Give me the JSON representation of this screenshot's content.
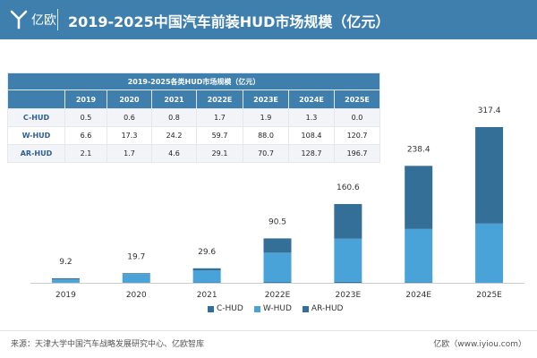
{
  "header": {
    "logo_text": "亿欧",
    "title": "2019-2025中国汽车前装HUD市场规模（亿元）"
  },
  "table": {
    "caption": "2019-2025各类HUD市场规模（亿元）",
    "columns": [
      "",
      "2019",
      "2020",
      "2021",
      "2022E",
      "2023E",
      "2024E",
      "2025E"
    ],
    "rows": [
      {
        "label": "C-HUD",
        "values": [
          "0.5",
          "0.6",
          "0.8",
          "1.7",
          "1.9",
          "1.3",
          "0.0"
        ]
      },
      {
        "label": "W-HUD",
        "values": [
          "6.6",
          "17.3",
          "24.2",
          "59.7",
          "88.0",
          "108.4",
          "120.7"
        ]
      },
      {
        "label": "AR-HUD",
        "values": [
          "2.1",
          "1.7",
          "4.6",
          "29.1",
          "70.7",
          "128.7",
          "196.7"
        ]
      }
    ]
  },
  "chart_data": {
    "type": "bar",
    "stacked": true,
    "categories": [
      "2019",
      "2020",
      "2021",
      "2022E",
      "2023E",
      "2024E",
      "2025E"
    ],
    "series": [
      {
        "name": "C-HUD",
        "values": [
          0.5,
          0.6,
          0.8,
          1.7,
          1.9,
          1.3,
          0.0
        ],
        "color": "#2f6f9a"
      },
      {
        "name": "W-HUD",
        "values": [
          6.6,
          17.3,
          24.2,
          59.7,
          88.0,
          108.4,
          120.7
        ],
        "color": "#4aa3d8"
      },
      {
        "name": "AR-HUD",
        "values": [
          2.1,
          1.7,
          4.6,
          29.1,
          70.7,
          128.7,
          196.7
        ],
        "color": "#336f96"
      }
    ],
    "totals": [
      "9.2",
      "19.7",
      "29.6",
      "90.5",
      "160.6",
      "238.4",
      "317.4"
    ],
    "ylim": [
      0,
      317.4
    ],
    "grid": false,
    "legend": "bottom"
  },
  "footer": {
    "source": "来源：天津大学中国汽车战略发展研究中心、亿欧智库",
    "brand": "亿欧（www.iyiou.com）"
  }
}
